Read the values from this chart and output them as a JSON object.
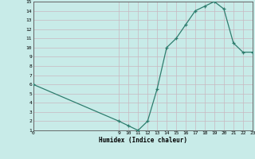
{
  "x": [
    0,
    9,
    10,
    11,
    12,
    13,
    14,
    15,
    16,
    17,
    18,
    19,
    20,
    21,
    22,
    23
  ],
  "y": [
    6,
    2,
    1.5,
    1,
    2,
    5.5,
    10,
    11,
    12.5,
    14,
    14.5,
    15,
    14.2,
    10.5,
    9.5,
    9.5
  ],
  "xlabel": "Humidex (Indice chaleur)",
  "ylim": [
    1,
    15
  ],
  "xlim": [
    0,
    23
  ],
  "yticks": [
    1,
    2,
    3,
    4,
    5,
    6,
    7,
    8,
    9,
    10,
    11,
    12,
    13,
    14,
    15
  ],
  "xticks": [
    0,
    9,
    10,
    11,
    12,
    13,
    14,
    15,
    16,
    17,
    18,
    19,
    20,
    21,
    22,
    23
  ],
  "line_color": "#2e7d6e",
  "marker_color": "#2e7d6e",
  "bg_color": "#c8ebe8",
  "grid_minor_color": "#cce0dc",
  "grid_major_color": "#c4b8c0"
}
